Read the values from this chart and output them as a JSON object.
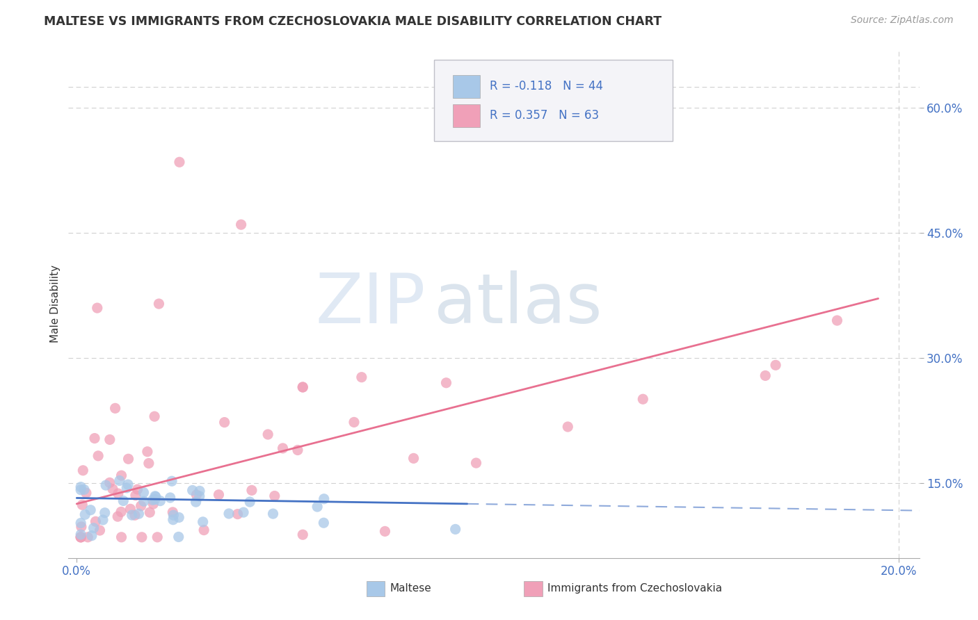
{
  "title": "MALTESE VS IMMIGRANTS FROM CZECHOSLOVAKIA MALE DISABILITY CORRELATION CHART",
  "source": "Source: ZipAtlas.com",
  "ylabel": "Male Disability",
  "xlim": [
    -0.002,
    0.205
  ],
  "ylim": [
    0.06,
    0.67
  ],
  "ytick_labels": [
    "15.0%",
    "30.0%",
    "45.0%",
    "60.0%"
  ],
  "ytick_values": [
    0.15,
    0.3,
    0.45,
    0.6
  ],
  "xtick_labels": [
    "0.0%",
    "20.0%"
  ],
  "xtick_values": [
    0.0,
    0.2
  ],
  "maltese_color": "#a8c8e8",
  "czech_color": "#f0a0b8",
  "maltese_line_color": "#4472c4",
  "czech_line_color": "#e87090",
  "R_maltese": -0.118,
  "N_maltese": 44,
  "R_czech": 0.357,
  "N_czech": 63,
  "watermark_zip": "ZIP",
  "watermark_atlas": "atlas",
  "background_color": "#ffffff",
  "grid_color": "#d0d0d0",
  "title_color": "#333333",
  "source_color": "#999999",
  "tick_color": "#4472c4",
  "legend_border_color": "#c0c0c8",
  "legend_bg_color": "#f4f4f8"
}
